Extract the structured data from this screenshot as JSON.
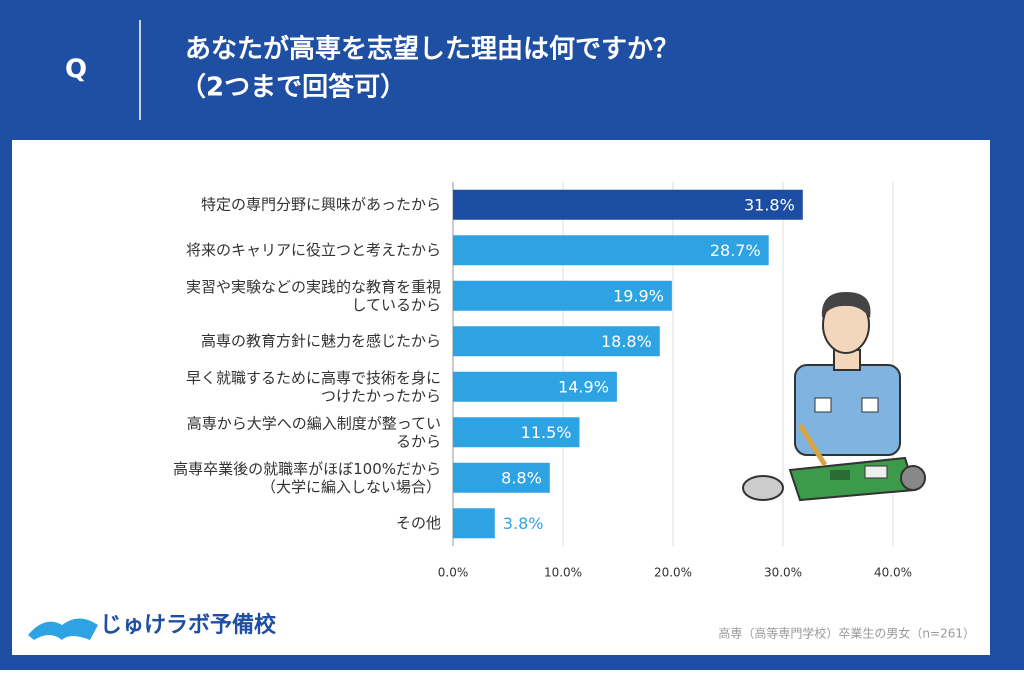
{
  "chart_data": {
    "type": "bar",
    "orientation": "horizontal",
    "header": {
      "marker": "Q",
      "title": [
        "あなたが高専を志望した理由は何ですか？",
        "（2つまで回答可）"
      ]
    },
    "categories": [
      "特定の専門分野に興味があったから",
      "将来のキャリアに役立つと考えたから",
      "実習や実験などの実践的な教育を重視\nしているから",
      "高専の教育方針に魅力を感じたから",
      "早く就職するために高専で技術を身に\nつけたかったから",
      "高専から大学への編入制度が整ってい\nるから",
      "高専卒業後の就職率がほぼ100%だから\n（大学に編入しない場合）",
      "その他"
    ],
    "values": [
      31.8,
      28.7,
      19.9,
      18.8,
      14.9,
      11.5,
      8.8,
      3.8
    ],
    "value_labels": [
      "31.8%",
      "28.7%",
      "19.9%",
      "18.8%",
      "14.9%",
      "11.5%",
      "8.8%",
      "3.8%"
    ],
    "colors": [
      "#1b4ea3",
      "#2ea3e3",
      "#2ea3e3",
      "#2ea3e3",
      "#2ea3e3",
      "#2ea3e3",
      "#2ea3e3",
      "#2ea3e3"
    ],
    "xlim": [
      0,
      40
    ],
    "xticks": [
      {
        "value": 0,
        "label": "0.0%"
      },
      {
        "value": 10,
        "label": "10.0%"
      },
      {
        "value": 20,
        "label": "20.0%"
      },
      {
        "value": 30,
        "label": "30.0%"
      },
      {
        "value": 40,
        "label": "40.0%"
      }
    ],
    "grid": true,
    "brand": "じゅけラボ予備校",
    "note": "高専（高等専門学校）卒業生の男女（n=261）"
  }
}
